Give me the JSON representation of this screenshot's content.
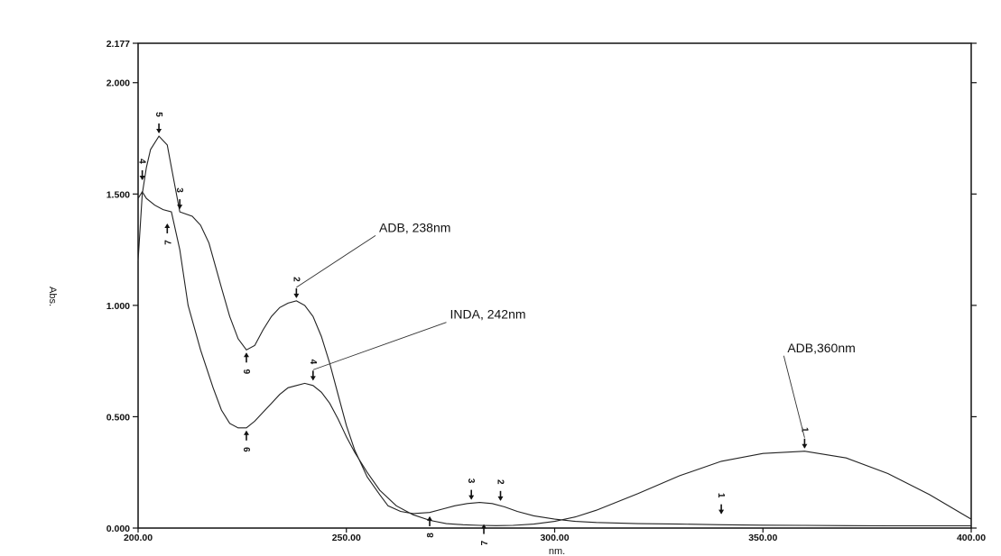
{
  "chart_data": {
    "type": "line",
    "xlabel": "nm.",
    "ylabel": "Abs.",
    "xlim": [
      200,
      400
    ],
    "ylim": [
      0,
      2.177
    ],
    "x_ticks": [
      "200.00",
      "250.00",
      "300.00",
      "350.00",
      "400.00"
    ],
    "y_ticks": [
      "0.000",
      "0.500",
      "1.000",
      "1.500",
      "2.000",
      "2.177"
    ],
    "x_tick_values": [
      200,
      250,
      300,
      350,
      400
    ],
    "y_tick_values": [
      0,
      0.5,
      1.0,
      1.5,
      2.0,
      2.177
    ],
    "series": [
      {
        "x": [
          200,
          201,
          202,
          203,
          205,
          207,
          208,
          210,
          213,
          215,
          217,
          220,
          222,
          224,
          226,
          228,
          230,
          232,
          234,
          236,
          238,
          240,
          242,
          244,
          246,
          248,
          250,
          252,
          255,
          258,
          260,
          263,
          266,
          270,
          273,
          276,
          279,
          282,
          285,
          288,
          291,
          295,
          300,
          305,
          310,
          320,
          330,
          340,
          350,
          360,
          370,
          380,
          390,
          400
        ],
        "y": [
          1.2,
          1.5,
          1.62,
          1.7,
          1.76,
          1.72,
          1.62,
          1.42,
          1.4,
          1.36,
          1.28,
          1.08,
          0.95,
          0.85,
          0.8,
          0.82,
          0.89,
          0.95,
          0.99,
          1.01,
          1.02,
          1.0,
          0.95,
          0.86,
          0.74,
          0.6,
          0.46,
          0.35,
          0.23,
          0.15,
          0.1,
          0.075,
          0.065,
          0.07,
          0.085,
          0.1,
          0.11,
          0.115,
          0.11,
          0.095,
          0.075,
          0.055,
          0.04,
          0.03,
          0.025,
          0.02,
          0.018,
          0.015,
          0.013,
          0.012,
          0.011,
          0.01,
          0.01,
          0.01
        ]
      },
      {
        "x": [
          200,
          201,
          202,
          204,
          206,
          208,
          210,
          212,
          215,
          218,
          220,
          222,
          224,
          226,
          228,
          230,
          232,
          234,
          236,
          238,
          240,
          242,
          244,
          246,
          248,
          250,
          252,
          255,
          258,
          262,
          266,
          270,
          274,
          278,
          282,
          286,
          290,
          295,
          300,
          305,
          310,
          320,
          330,
          340,
          350,
          360,
          370,
          380,
          390,
          400
        ],
        "y": [
          1.48,
          1.51,
          1.48,
          1.45,
          1.43,
          1.42,
          1.25,
          1.0,
          0.8,
          0.63,
          0.53,
          0.47,
          0.45,
          0.45,
          0.48,
          0.52,
          0.56,
          0.6,
          0.63,
          0.64,
          0.65,
          0.64,
          0.61,
          0.56,
          0.49,
          0.41,
          0.34,
          0.25,
          0.17,
          0.1,
          0.06,
          0.035,
          0.02,
          0.015,
          0.012,
          0.011,
          0.012,
          0.018,
          0.03,
          0.05,
          0.08,
          0.155,
          0.235,
          0.3,
          0.335,
          0.345,
          0.315,
          0.245,
          0.15,
          0.04
        ]
      }
    ],
    "peak_markers": [
      {
        "label": "5",
        "x": 205,
        "y": 1.76,
        "dir": "down"
      },
      {
        "label": "4",
        "x": 201,
        "y": 1.55,
        "dir": "down"
      },
      {
        "label": "3",
        "x": 210,
        "y": 1.42,
        "dir": "down"
      },
      {
        "label": "7",
        "x": 207,
        "y": 1.38,
        "dir": "up"
      },
      {
        "label": "2",
        "x": 238,
        "y": 1.02,
        "dir": "down"
      },
      {
        "label": "6",
        "x": 226,
        "y": 0.8,
        "dir": "up"
      },
      {
        "label": "4",
        "x": 242,
        "y": 0.65,
        "dir": "down"
      },
      {
        "label": "9",
        "x": 226,
        "y": 0.45,
        "dir": "up"
      },
      {
        "label": "1",
        "x": 360,
        "y": 0.345,
        "dir": "down"
      },
      {
        "label": "3",
        "x": 280,
        "y": 0.115,
        "dir": "down"
      },
      {
        "label": "2",
        "x": 287,
        "y": 0.11,
        "dir": "down"
      },
      {
        "label": "8",
        "x": 270,
        "y": 0.065,
        "dir": "up"
      },
      {
        "label": "7",
        "x": 283,
        "y": 0.03,
        "dir": "up"
      },
      {
        "label": "1",
        "x": 340,
        "y": 0.05,
        "dir": "down"
      }
    ],
    "annotations": [
      {
        "text": "ADB, 238nm",
        "x": 238,
        "y": 1.02,
        "text_x": 257,
        "text_y": 1.33
      },
      {
        "text": "INDA, 242nm",
        "x": 242,
        "y": 0.65,
        "text_x": 274,
        "text_y": 0.94
      },
      {
        "text": "ADB,360nm",
        "x": 360,
        "y": 0.345,
        "text_x": 355,
        "text_y": 0.79
      }
    ],
    "grid": false
  }
}
